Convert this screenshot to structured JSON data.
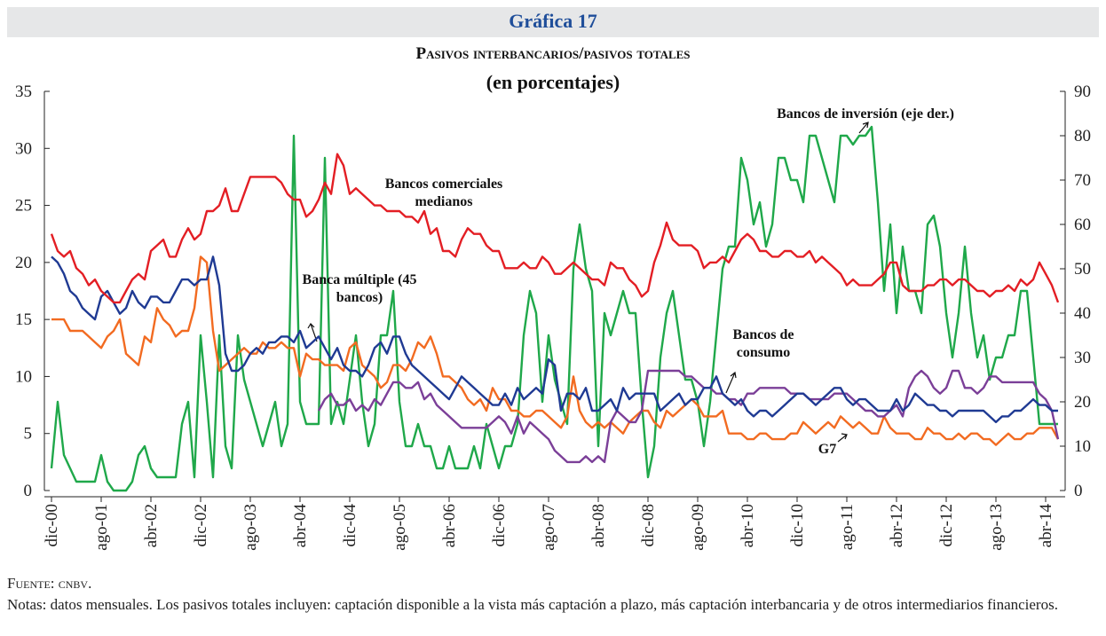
{
  "chart_data": {
    "type": "line",
    "header": "Gráfica 17",
    "title": "Pasivos interbancarios/pasivos totales",
    "subtitle": "(en porcentajes)",
    "source": "Fuente: cnbv.",
    "notes": "Notas: datos mensuales. Los pasivos totales incluyen: captación disponible a la vista más captación a plazo, más captación interbancaria y de otros intermediarios financieros.",
    "categories": [
      "dic-00",
      null,
      null,
      null,
      null,
      null,
      null,
      null,
      "ago-01",
      null,
      null,
      null,
      null,
      null,
      null,
      null,
      "abr-02",
      null,
      null,
      null,
      null,
      null,
      null,
      null,
      "dic-02",
      null,
      null,
      null,
      null,
      null,
      null,
      null,
      "ago-03",
      null,
      null,
      null,
      null,
      null,
      null,
      null,
      "abr-04",
      null,
      null,
      null,
      null,
      null,
      null,
      null,
      "dic-04",
      null,
      null,
      null,
      null,
      null,
      null,
      null,
      "ago-05",
      null,
      null,
      null,
      null,
      null,
      null,
      null,
      "abr-06",
      null,
      null,
      null,
      null,
      null,
      null,
      null,
      "dic-06",
      null,
      null,
      null,
      null,
      null,
      null,
      null,
      "ago-07",
      null,
      null,
      null,
      null,
      null,
      null,
      null,
      "abr-08",
      null,
      null,
      null,
      null,
      null,
      null,
      null,
      "dic-08",
      null,
      null,
      null,
      null,
      null,
      null,
      null,
      "ago-09",
      null,
      null,
      null,
      null,
      null,
      null,
      null,
      "abr-10",
      null,
      null,
      null,
      null,
      null,
      null,
      null,
      "dic-10",
      null,
      null,
      null,
      null,
      null,
      null,
      null,
      "ago-11",
      null,
      null,
      null,
      null,
      null,
      null,
      null,
      "abr-12",
      null,
      null,
      null,
      null,
      null,
      null,
      null,
      "dic-12",
      null,
      null,
      null,
      null,
      null,
      null,
      null,
      "ago-13",
      null,
      null,
      null,
      null,
      null,
      null,
      null,
      "abr-14",
      null,
      null
    ],
    "ylim": [
      0,
      35
    ],
    "yticks": [
      0,
      5,
      10,
      15,
      20,
      25,
      30,
      35
    ],
    "y2lim": [
      0,
      90
    ],
    "y2ticks": [
      0,
      10,
      20,
      30,
      40,
      50,
      60,
      70,
      80,
      90
    ],
    "series": [
      {
        "name": "Bancos comerciales medianos",
        "color": "#e31e24",
        "values": [
          22.5,
          21,
          20.5,
          21,
          19.5,
          19,
          18,
          18.5,
          17.5,
          17,
          16.5,
          16.5,
          17.5,
          18.5,
          19,
          18.5,
          21,
          21.5,
          22,
          20.5,
          20.5,
          22,
          23,
          22,
          22.5,
          24.5,
          24.5,
          25,
          26.5,
          24.5,
          24.5,
          26,
          27.5,
          27.5,
          27.5,
          27.5,
          27.5,
          27,
          26,
          25.5,
          25.5,
          24,
          24.5,
          25.5,
          27,
          26,
          29.5,
          28.5,
          26,
          26.5,
          26,
          25.5,
          25,
          25,
          24.5,
          24.5,
          24.5,
          24,
          24,
          23.5,
          24.5,
          22.5,
          23,
          21,
          21,
          20.5,
          22,
          23,
          22.5,
          22.5,
          21.5,
          21,
          21,
          19.5,
          19.5,
          19.5,
          20,
          19.5,
          19.5,
          20.5,
          20,
          19,
          19,
          19.5,
          20,
          19.5,
          19,
          18.5,
          18.5,
          18,
          20,
          19.5,
          19.5,
          18.5,
          18,
          17,
          17.5,
          20,
          21.5,
          23.5,
          22,
          21.5,
          21.5,
          21.5,
          21,
          19.5,
          20,
          20,
          20.5,
          20,
          21,
          22,
          22.5,
          22,
          21,
          21,
          20.5,
          20.5,
          21,
          21,
          20.5,
          20.5,
          21,
          20,
          20.5,
          20,
          19.5,
          19,
          18,
          18.5,
          18,
          18,
          18,
          18.5,
          19,
          20,
          20,
          18,
          17.5,
          17.5,
          17.5,
          18,
          18,
          18.5,
          18.5,
          18,
          18.5,
          18.5,
          18,
          17.5,
          17.5,
          17,
          17.5,
          17.5,
          18,
          17.5,
          18.5,
          18,
          18.5,
          20,
          19,
          18,
          16.5
        ]
      },
      {
        "name": "Banca múltiple (45 bancos)",
        "color": "#1f3a93",
        "values": [
          20.5,
          20,
          19,
          17.5,
          17,
          16,
          15.5,
          15,
          17,
          17.5,
          16.5,
          15.5,
          16,
          17.5,
          16.5,
          16,
          17,
          17,
          16.5,
          16.5,
          17.5,
          18.5,
          18.5,
          18,
          18.5,
          18.5,
          20.5,
          18,
          12,
          10.5,
          10.5,
          11,
          12,
          12.5,
          12,
          13,
          13,
          13.5,
          13.5,
          13,
          14,
          12.5,
          13,
          13.5,
          12.5,
          11.5,
          12.5,
          11,
          10.5,
          10.5,
          10,
          11,
          12.5,
          13,
          12,
          13.5,
          13.5,
          12,
          11,
          10.5,
          10,
          9.5,
          9,
          8.5,
          8,
          9,
          10,
          9.5,
          9,
          8.5,
          8,
          7.5,
          7.5,
          8.5,
          7.5,
          9,
          8,
          8.5,
          9,
          8.5,
          11.5,
          11,
          7,
          8.5,
          8.5,
          8,
          9,
          7,
          7,
          7.5,
          8,
          7,
          9,
          8,
          8.5,
          8.5,
          8.5,
          8.5,
          7,
          7.5,
          8,
          8.5,
          7.5,
          8,
          8,
          9,
          9,
          10,
          8.5,
          8,
          7.5,
          8,
          7,
          6.5,
          7,
          7,
          6.5,
          7,
          7.5,
          8,
          8.5,
          8.5,
          8,
          7.5,
          8,
          8.5,
          9,
          9,
          8,
          7.5,
          8,
          8,
          7.5,
          7,
          7,
          7,
          8,
          7,
          7.5,
          8.5,
          8,
          7.5,
          7.5,
          7,
          7,
          6.5,
          7,
          7,
          7,
          7,
          7,
          6.5,
          6,
          6.5,
          6.5,
          7,
          7,
          7.5,
          8,
          7.5,
          7.5,
          7,
          7
        ]
      },
      {
        "name": "G7",
        "color": "#f26b21",
        "values": [
          15,
          15,
          15,
          14,
          14,
          14,
          13.5,
          13,
          12.5,
          13.5,
          14,
          15,
          12,
          11.5,
          11,
          13.5,
          13,
          16,
          15,
          14.5,
          13.5,
          14,
          14,
          16,
          20.5,
          20,
          14,
          10.5,
          11,
          11.5,
          12,
          12.5,
          12,
          12,
          13,
          12.5,
          12.5,
          13,
          12.5,
          12.5,
          10,
          12,
          11.5,
          11.5,
          11,
          11,
          11,
          10.5,
          12.5,
          13,
          11,
          10.5,
          10,
          9,
          9.5,
          11,
          11,
          10.5,
          11.5,
          13,
          12.5,
          13.5,
          12,
          10,
          10,
          9.5,
          9,
          8,
          7.5,
          8,
          7,
          9,
          8,
          8,
          7,
          7,
          6.5,
          6.5,
          7,
          7,
          6.5,
          6,
          5.5,
          6.5,
          10,
          7,
          6,
          5.5,
          6,
          5.5,
          6,
          5.5,
          5,
          6,
          6.5,
          7,
          7,
          6,
          5.5,
          7,
          6.5,
          7,
          7.5,
          8,
          7.5,
          6.5,
          6.5,
          6.5,
          7,
          5,
          5,
          5,
          4.5,
          4.5,
          5,
          5,
          4.5,
          4.5,
          4.5,
          5,
          5,
          6,
          5.5,
          5,
          5.5,
          6,
          5.5,
          6.5,
          6,
          5.5,
          6,
          5.5,
          5,
          5,
          6.5,
          5.5,
          5,
          5,
          5,
          4.5,
          4.5,
          5.5,
          5,
          5,
          4.5,
          4.5,
          5,
          4.5,
          5,
          5,
          4.5,
          4.5,
          4,
          4.5,
          5,
          4.5,
          4.5,
          5,
          5,
          5.5,
          5.5,
          5.5,
          4.5
        ]
      },
      {
        "name": "Bancos de consumo",
        "color": "#7b3f98",
        "values": [
          null,
          null,
          null,
          null,
          null,
          null,
          null,
          null,
          null,
          null,
          null,
          null,
          null,
          null,
          null,
          null,
          null,
          null,
          null,
          null,
          null,
          null,
          null,
          null,
          null,
          null,
          null,
          null,
          null,
          null,
          null,
          null,
          null,
          null,
          null,
          null,
          null,
          null,
          null,
          null,
          null,
          null,
          null,
          7,
          8,
          8.5,
          7.5,
          7.5,
          8,
          7,
          7.5,
          7,
          8,
          7.5,
          8.5,
          9.5,
          9.5,
          9,
          9,
          9.5,
          8,
          8.5,
          7.5,
          7,
          6.5,
          6,
          5.5,
          5.5,
          5.5,
          5.5,
          5.5,
          6,
          6.5,
          6,
          5,
          6.5,
          5,
          6,
          5.5,
          5,
          4.5,
          3.5,
          3,
          2.5,
          2.5,
          2.5,
          3,
          2.5,
          3,
          2.5,
          6,
          7,
          6.5,
          6,
          6,
          7,
          10.5,
          10.5,
          10.5,
          10.5,
          10.5,
          10.5,
          10,
          10,
          9.5,
          9,
          9,
          8.5,
          8.5,
          8,
          8,
          7.5,
          8.5,
          8.5,
          9,
          9,
          9,
          9,
          9,
          8.5,
          8.5,
          8.5,
          8,
          8,
          8,
          8,
          8.5,
          8.5,
          8.5,
          8,
          7.5,
          7,
          7,
          6.5,
          6.5,
          7,
          7.5,
          6.5,
          9,
          10,
          10.5,
          10,
          9,
          8.5,
          9,
          10.5,
          10.5,
          9,
          9,
          8.5,
          9,
          10,
          10,
          9.5,
          9.5,
          9.5,
          9.5,
          9.5,
          9.5,
          8.5,
          8,
          7,
          4.5
        ]
      },
      {
        "name": "Bancos de inversión (eje der.)",
        "color": "#1fa84a",
        "axis": "y2",
        "values": [
          5,
          20,
          8,
          5,
          2,
          2,
          2,
          2,
          8,
          2,
          0,
          0,
          0,
          2,
          8,
          10,
          5,
          3,
          3,
          3,
          3,
          15,
          20,
          3,
          35,
          20,
          3,
          35,
          10,
          5,
          35,
          25,
          20,
          15,
          10,
          15,
          20,
          10,
          15,
          80,
          20,
          15,
          15,
          15,
          75,
          15,
          20,
          15,
          25,
          35,
          20,
          10,
          15,
          35,
          35,
          45,
          20,
          10,
          10,
          15,
          10,
          10,
          5,
          5,
          10,
          5,
          5,
          5,
          10,
          5,
          15,
          10,
          5,
          10,
          10,
          15,
          35,
          45,
          40,
          20,
          35,
          25,
          20,
          15,
          50,
          60,
          50,
          45,
          10,
          40,
          35,
          40,
          45,
          40,
          40,
          20,
          3,
          10,
          30,
          40,
          45,
          35,
          25,
          25,
          20,
          10,
          20,
          35,
          50,
          55,
          55,
          75,
          70,
          60,
          65,
          55,
          60,
          75,
          75,
          70,
          70,
          65,
          80,
          80,
          75,
          70,
          65,
          80,
          80,
          78,
          80,
          80,
          82,
          65,
          45,
          60,
          40,
          55,
          45,
          45,
          40,
          60,
          62,
          55,
          40,
          30,
          40,
          55,
          40,
          30,
          35,
          25,
          30,
          30,
          35,
          35,
          45,
          45,
          30,
          15,
          15,
          15,
          15
        ]
      }
    ]
  }
}
